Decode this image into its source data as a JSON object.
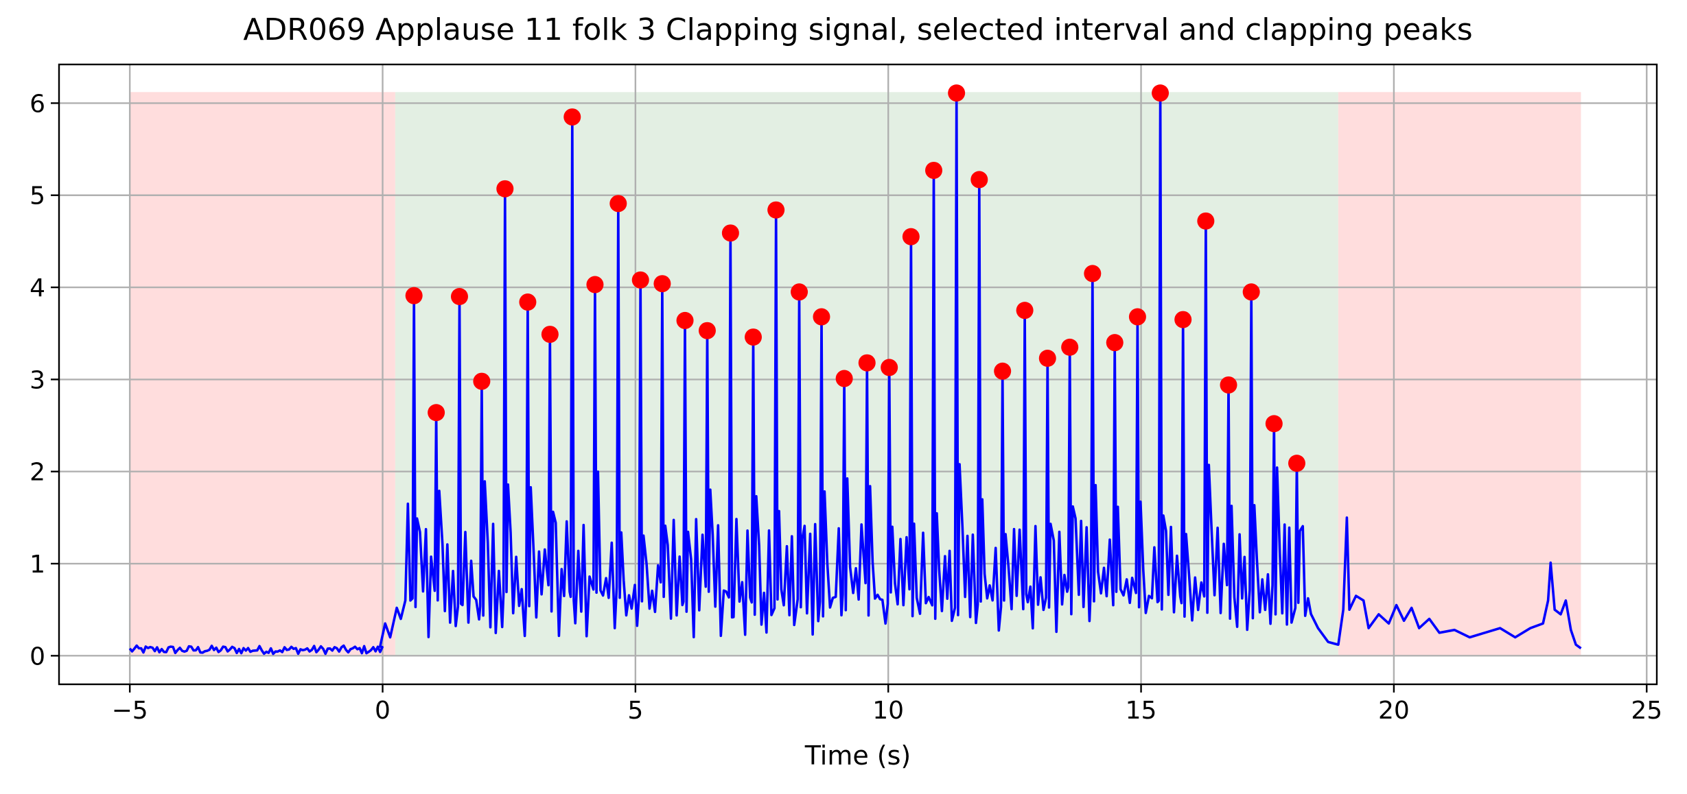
{
  "chart_data": {
    "type": "line",
    "title": "ADR069 Applause 11 folk 3 Clapping signal, selected interval and clapping peaks",
    "xlabel": "Time (s)",
    "ylabel": "",
    "xlim": [
      -6.4,
      25.2
    ],
    "ylim": [
      -0.31,
      6.42
    ],
    "xticks": [
      -5,
      0,
      5,
      10,
      15,
      20,
      25
    ],
    "yticks": [
      0,
      1,
      2,
      3,
      4,
      5,
      6
    ],
    "grid": true,
    "colors": {
      "signal": "#0000ff",
      "peaks": "#ff0000",
      "excluded": "#ffdddd",
      "selected": "#e3efe3",
      "grid": "#b0b0b0"
    },
    "regions": [
      {
        "kind": "excluded",
        "start": -5.0,
        "end": 0.25,
        "top": 6.12
      },
      {
        "kind": "selected",
        "start": 0.25,
        "end": 18.9,
        "top": 6.12
      },
      {
        "kind": "excluded",
        "start": 18.9,
        "end": 23.7,
        "top": 6.12
      }
    ],
    "peaks": [
      {
        "t": 0.62,
        "v": 3.91
      },
      {
        "t": 1.06,
        "v": 2.64
      },
      {
        "t": 1.52,
        "v": 3.9
      },
      {
        "t": 1.96,
        "v": 2.98
      },
      {
        "t": 2.42,
        "v": 5.07
      },
      {
        "t": 2.87,
        "v": 3.84
      },
      {
        "t": 3.31,
        "v": 3.49
      },
      {
        "t": 3.75,
        "v": 5.85
      },
      {
        "t": 4.2,
        "v": 4.03
      },
      {
        "t": 4.66,
        "v": 4.91
      },
      {
        "t": 5.1,
        "v": 4.08
      },
      {
        "t": 5.53,
        "v": 4.04
      },
      {
        "t": 5.98,
        "v": 3.64
      },
      {
        "t": 6.42,
        "v": 3.53
      },
      {
        "t": 6.88,
        "v": 4.59
      },
      {
        "t": 7.33,
        "v": 3.46
      },
      {
        "t": 7.78,
        "v": 4.84
      },
      {
        "t": 8.24,
        "v": 3.95
      },
      {
        "t": 8.68,
        "v": 3.68
      },
      {
        "t": 9.13,
        "v": 3.01
      },
      {
        "t": 9.58,
        "v": 3.18
      },
      {
        "t": 10.02,
        "v": 3.13
      },
      {
        "t": 10.45,
        "v": 4.55
      },
      {
        "t": 10.9,
        "v": 5.27
      },
      {
        "t": 11.35,
        "v": 6.11
      },
      {
        "t": 11.8,
        "v": 5.17
      },
      {
        "t": 12.26,
        "v": 3.09
      },
      {
        "t": 12.7,
        "v": 3.75
      },
      {
        "t": 13.15,
        "v": 3.23
      },
      {
        "t": 13.59,
        "v": 3.35
      },
      {
        "t": 14.04,
        "v": 4.15
      },
      {
        "t": 14.48,
        "v": 3.4
      },
      {
        "t": 14.93,
        "v": 3.68
      },
      {
        "t": 15.38,
        "v": 6.11
      },
      {
        "t": 15.83,
        "v": 3.65
      },
      {
        "t": 16.28,
        "v": 4.72
      },
      {
        "t": 16.73,
        "v": 2.94
      },
      {
        "t": 17.18,
        "v": 3.95
      },
      {
        "t": 17.63,
        "v": 2.52
      },
      {
        "t": 18.08,
        "v": 2.09
      }
    ],
    "pre_signal": {
      "segments": [
        [
          -5.0,
          0.08
        ],
        [
          -0.4,
          0.1
        ],
        [
          0.1,
          0.35
        ],
        [
          0.25,
          0.3
        ],
        [
          0.3,
          0.52
        ],
        [
          0.38,
          0.45
        ]
      ]
    },
    "post_signal": {
      "points": [
        [
          18.5,
          0.3
        ],
        [
          18.7,
          0.15
        ],
        [
          18.9,
          0.12
        ],
        [
          19.0,
          0.5
        ],
        [
          19.07,
          1.5
        ],
        [
          19.12,
          0.5
        ],
        [
          19.25,
          0.65
        ],
        [
          19.4,
          0.6
        ],
        [
          19.5,
          0.3
        ],
        [
          19.7,
          0.45
        ],
        [
          19.9,
          0.35
        ],
        [
          20.05,
          0.55
        ],
        [
          20.2,
          0.38
        ],
        [
          20.35,
          0.52
        ],
        [
          20.5,
          0.3
        ],
        [
          20.7,
          0.4
        ],
        [
          20.9,
          0.25
        ],
        [
          21.2,
          0.28
        ],
        [
          21.5,
          0.2
        ],
        [
          21.8,
          0.25
        ],
        [
          22.1,
          0.3
        ],
        [
          22.4,
          0.2
        ],
        [
          22.7,
          0.3
        ],
        [
          22.95,
          0.35
        ],
        [
          23.05,
          0.6
        ],
        [
          23.1,
          1.01
        ],
        [
          23.18,
          0.5
        ],
        [
          23.3,
          0.45
        ],
        [
          23.4,
          0.6
        ],
        [
          23.5,
          0.28
        ],
        [
          23.6,
          0.12
        ],
        [
          23.7,
          0.08
        ]
      ]
    }
  }
}
